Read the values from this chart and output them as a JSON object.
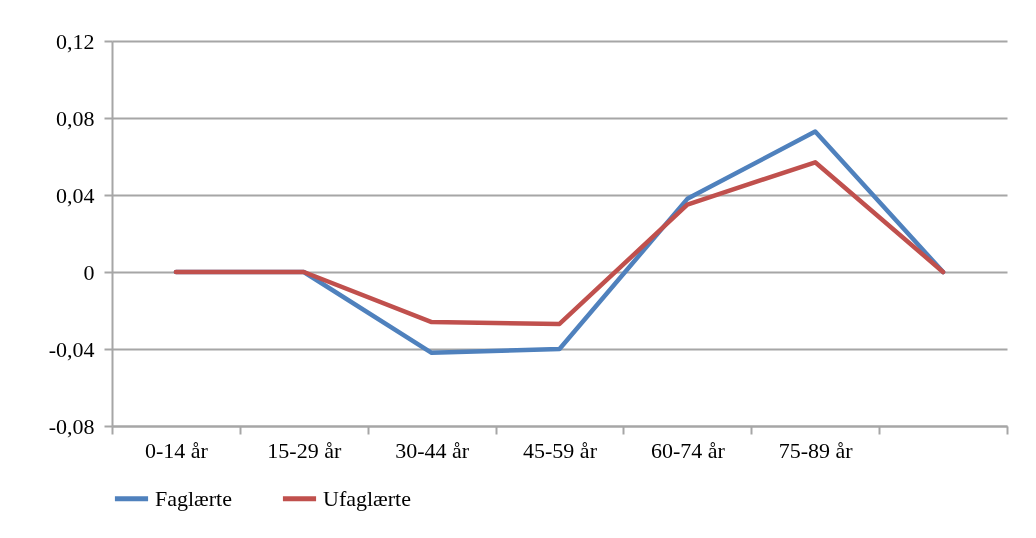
{
  "chart_data": {
    "type": "line",
    "categories": [
      "0-14 år",
      "15-29 år",
      "30-44 år",
      "45-59 år",
      "60-74 år",
      "75-89 år",
      null
    ],
    "series": [
      {
        "name": "Faglærte",
        "color": "#4f81bd",
        "values": [
          0,
          0,
          -0.042,
          -0.04,
          0.038,
          0.073,
          0
        ]
      },
      {
        "name": "Ufaglærte",
        "color": "#c0504d",
        "values": [
          0,
          0,
          -0.026,
          -0.027,
          0.035,
          0.057,
          0
        ]
      }
    ],
    "ylim": [
      -0.08,
      0.12
    ],
    "yticks": [
      {
        "value": -0.08,
        "label": "-0,08"
      },
      {
        "value": -0.04,
        "label": "-0,04"
      },
      0,
      {
        "value": 0.04,
        "label": "0,04"
      },
      {
        "value": 0.08,
        "label": "0,08"
      },
      {
        "value": 0.12,
        "label": "0,12"
      }
    ],
    "grid": "y",
    "legend": "bottom",
    "marker": "none",
    "line_style": "solid"
  }
}
